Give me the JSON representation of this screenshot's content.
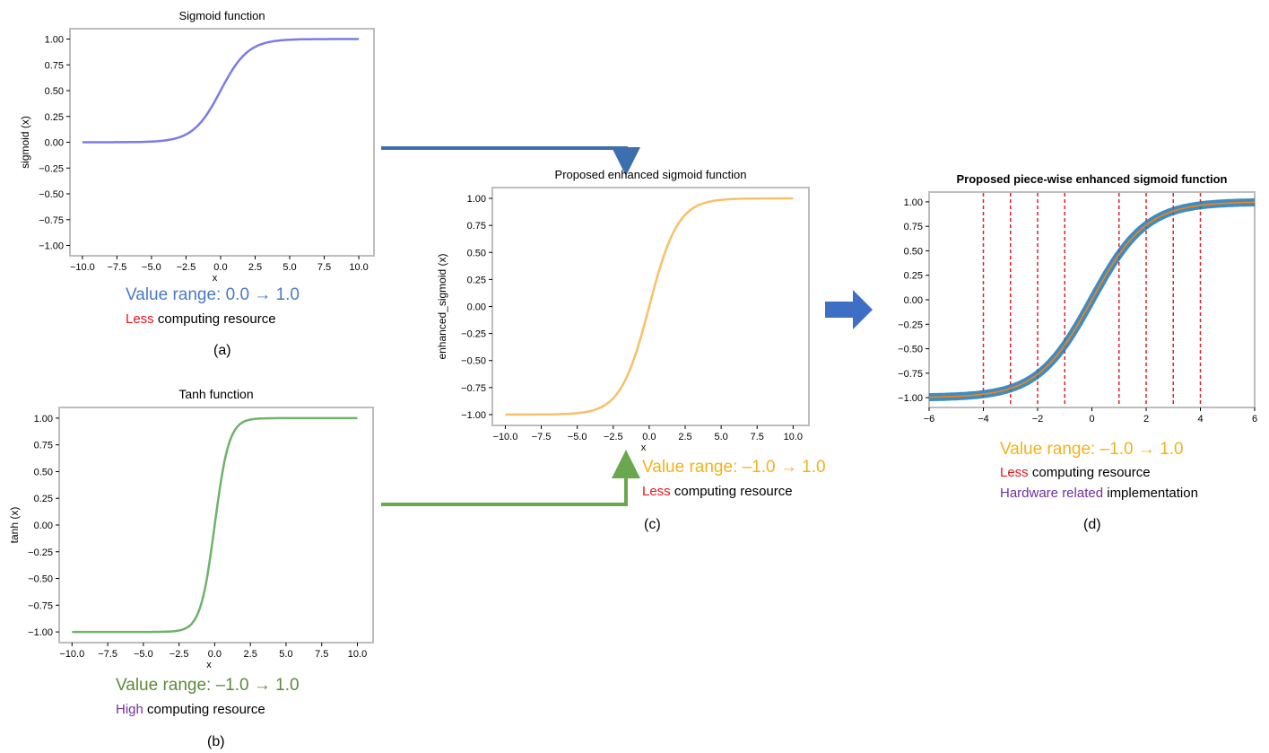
{
  "chart_data": [
    {
      "id": "a",
      "type": "line",
      "title": "Sigmoid function",
      "xlabel": "x",
      "ylabel": "sigmoid (x)",
      "xlim": [
        -10.9,
        11.1
      ],
      "ylim": [
        -1.1,
        1.1
      ],
      "xticks": [
        -10.0,
        -7.5,
        -5.0,
        -2.5,
        0.0,
        2.5,
        5.0,
        7.5,
        10.0
      ],
      "yticks": [
        1.0,
        0.75,
        0.5,
        0.25,
        0.0,
        -0.25,
        -0.5,
        -0.75,
        -1.0
      ],
      "xtick_labels": [
        "−10.0",
        "−7.5",
        "−5.0",
        "−2.5",
        "0.0",
        "2.5",
        "5.0",
        "7.5",
        "10.0"
      ],
      "ytick_labels": [
        "1.00",
        "0.75",
        "0.50",
        "0.25",
        "0.00",
        "−0.25",
        "−0.50",
        "−0.75",
        "−1.00"
      ],
      "grid": false,
      "series": [
        {
          "function": "sigmoid",
          "x_range": [
            -10,
            10
          ],
          "color": "#7b7bea"
        }
      ],
      "annotation": {
        "value_range": "Value range: 0.0 → 1.0",
        "resource_highlight": "Less",
        "resource_text": " computing resource",
        "label": "(a)"
      },
      "annotation_color": "#4a7ac6"
    },
    {
      "id": "b",
      "type": "line",
      "title": "Tanh function",
      "xlabel": "x",
      "ylabel": "tanh (x)",
      "xlim": [
        -10.9,
        11.1
      ],
      "ylim": [
        -1.1,
        1.1
      ],
      "xticks": [
        -10.0,
        -7.5,
        -5.0,
        -2.5,
        0.0,
        2.5,
        5.0,
        7.5,
        10.0
      ],
      "yticks": [
        1.0,
        0.75,
        0.5,
        0.25,
        0.0,
        -0.25,
        -0.5,
        -0.75,
        -1.0
      ],
      "xtick_labels": [
        "−10.0",
        "−7.5",
        "−5.0",
        "−2.5",
        "0.0",
        "2.5",
        "5.0",
        "7.5",
        "10.0"
      ],
      "ytick_labels": [
        "1.00",
        "0.75",
        "0.50",
        "0.25",
        "0.00",
        "−0.25",
        "−0.50",
        "−0.75",
        "−1.00"
      ],
      "grid": false,
      "series": [
        {
          "function": "tanh",
          "x_range": [
            -10,
            10
          ],
          "color": "#6db36a"
        }
      ],
      "annotation": {
        "value_range": "Value range: –1.0 → 1.0",
        "resource_highlight": "High",
        "resource_text": " computing resource",
        "label": "(b)"
      },
      "annotation_color": "#5b8a3a"
    },
    {
      "id": "c",
      "type": "line",
      "title": "Proposed enhanced sigmoid function",
      "xlabel": "x",
      "ylabel": "enhanced_sigmoid (x)",
      "xlim": [
        -10.9,
        11.1
      ],
      "ylim": [
        -1.1,
        1.1
      ],
      "xticks": [
        -10.0,
        -7.5,
        -5.0,
        -2.5,
        0.0,
        2.5,
        5.0,
        7.5,
        10.0
      ],
      "yticks": [
        1.0,
        0.75,
        0.5,
        0.25,
        0.0,
        -0.25,
        -0.5,
        -0.75,
        -1.0
      ],
      "xtick_labels": [
        "−10.0",
        "−7.5",
        "−5.0",
        "−2.5",
        "0.0",
        "2.5",
        "5.0",
        "7.5",
        "10.0"
      ],
      "ytick_labels": [
        "1.00",
        "0.75",
        "0.50",
        "0.25",
        "0.00",
        "−0.25",
        "−0.50",
        "−0.75",
        "−1.00"
      ],
      "grid": false,
      "series": [
        {
          "function": "enhanced_sigmoid",
          "x_range": [
            -10,
            10
          ],
          "color": "#f7c165"
        }
      ],
      "annotation": {
        "value_range": "Value range: –1.0 → 1.0",
        "resource_highlight": "Less",
        "resource_text": " computing resource",
        "label": "(c)"
      },
      "annotation_color": "#f2b21c"
    },
    {
      "id": "d",
      "type": "line",
      "title": "Proposed piece-wise enhanced sigmoid function",
      "xlabel": "",
      "ylabel": "",
      "xlim": [
        -6,
        6
      ],
      "ylim": [
        -1.1,
        1.1
      ],
      "xticks": [
        -6,
        -4,
        -2,
        0,
        2,
        4,
        6
      ],
      "yticks": [
        1.0,
        0.75,
        0.5,
        0.25,
        0.0,
        -0.25,
        -0.5,
        -0.75,
        -1.0
      ],
      "xtick_labels": [
        "−6",
        "−4",
        "−2",
        "0",
        "2",
        "4",
        "6"
      ],
      "ytick_labels": [
        "1.00",
        "0.75",
        "0.50",
        "0.25",
        "0.00",
        "−0.25",
        "−0.50",
        "−0.75",
        "−1.00"
      ],
      "grid": false,
      "breakpoints": [
        -4,
        -3,
        -2,
        -1,
        1,
        2,
        3,
        4
      ],
      "breakpoint_color": "#e0202a",
      "series": [
        {
          "function": "enhanced_sigmoid_band",
          "x_range": [
            -6,
            6
          ],
          "color": "#1f77b4"
        },
        {
          "function": "enhanced_sigmoid",
          "x_range": [
            -6,
            6
          ],
          "color": "#3fae6a"
        },
        {
          "function": "enhanced_sigmoid",
          "x_range": [
            -6,
            6
          ],
          "color": "#ff7f0e"
        }
      ],
      "annotation": {
        "value_range": "Value range: –1.0 → 1.0",
        "resource_highlight": "Less",
        "resource_text": " computing resource",
        "hardware_highlight": "Hardware related",
        "hardware_text": " implementation",
        "label": "(d)"
      },
      "annotation_color": "#f2b21c"
    }
  ],
  "colors": {
    "arrow_a": "#3d6fae",
    "arrow_b": "#6aa84f",
    "big_arrow": "#3f6fc4",
    "highlight_red": "#e8141a",
    "highlight_purple": "#7030a0"
  }
}
